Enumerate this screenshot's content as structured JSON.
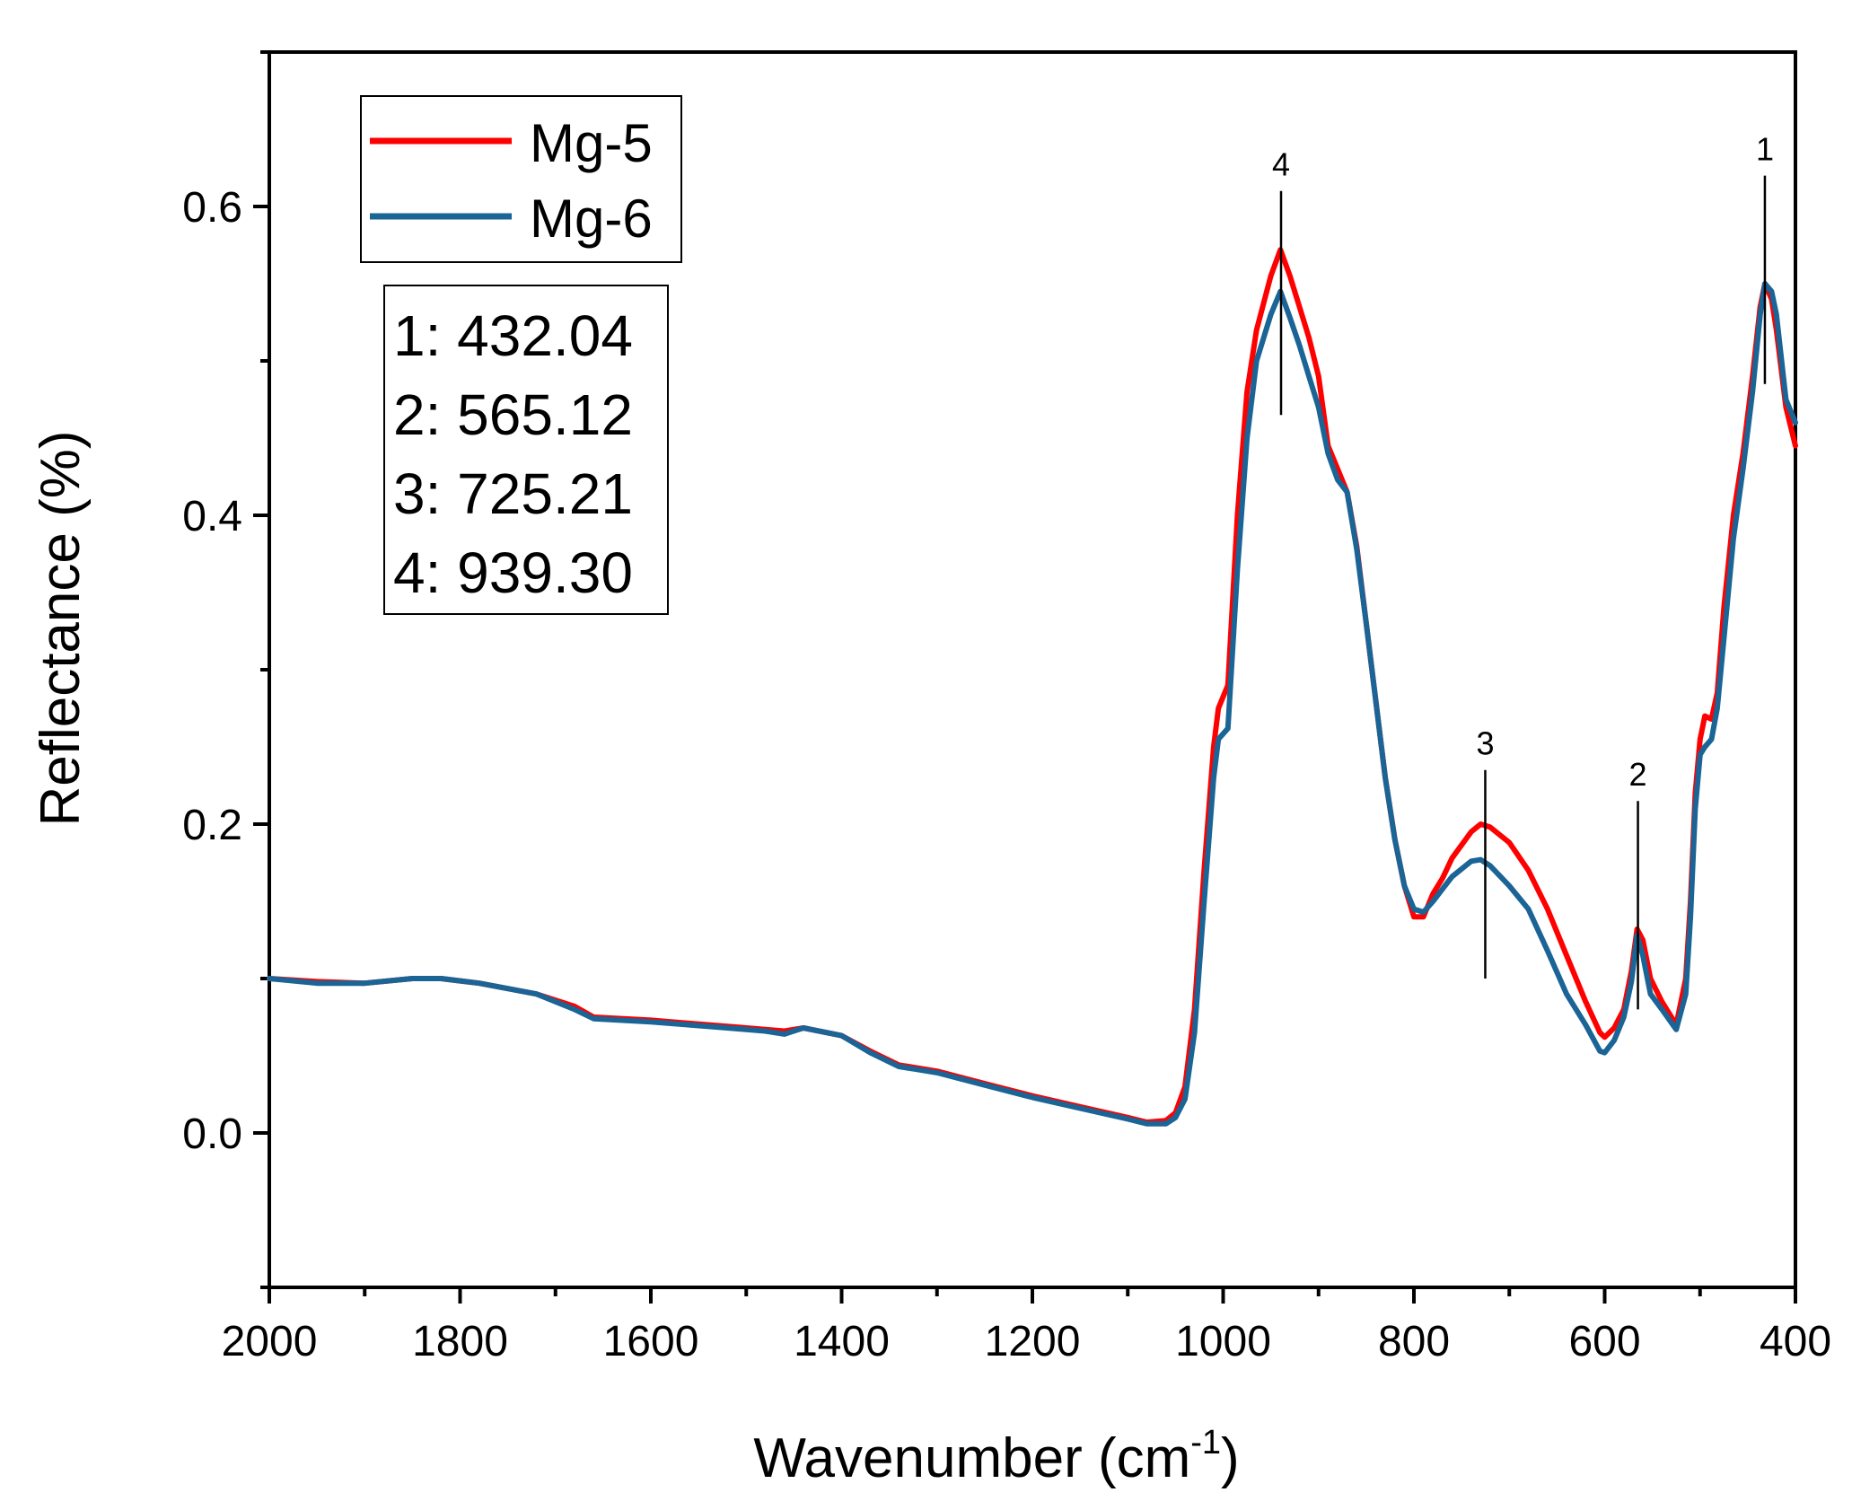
{
  "chart_data": {
    "type": "line",
    "title": "",
    "xlabel": "Wavenumber (cm",
    "xlabel_sup": "-1",
    "xlabel_close": ")",
    "ylabel": "Reflectance (%)",
    "xlim": [
      2000,
      400
    ],
    "ylim": [
      -0.1,
      0.7
    ],
    "x_ticks": [
      2000,
      1800,
      1600,
      1400,
      1200,
      1000,
      800,
      600,
      400
    ],
    "x_tick_labels": [
      "2000",
      "1800",
      "1600",
      "1400",
      "1200",
      "1000",
      "800",
      "600",
      "400"
    ],
    "y_ticks": [
      0.0,
      0.2,
      0.4,
      0.6
    ],
    "y_tick_labels": [
      "0.0",
      "0.2",
      "0.4",
      "0.6"
    ],
    "grid": false,
    "legend_position": "top-left",
    "series": [
      {
        "name": "Mg-5",
        "color": "#ff0000",
        "points": [
          [
            2000,
            0.1
          ],
          [
            1950,
            0.098
          ],
          [
            1900,
            0.097
          ],
          [
            1850,
            0.1
          ],
          [
            1820,
            0.1
          ],
          [
            1780,
            0.097
          ],
          [
            1720,
            0.09
          ],
          [
            1680,
            0.082
          ],
          [
            1660,
            0.075
          ],
          [
            1600,
            0.073
          ],
          [
            1560,
            0.071
          ],
          [
            1520,
            0.069
          ],
          [
            1480,
            0.067
          ],
          [
            1460,
            0.066
          ],
          [
            1440,
            0.068
          ],
          [
            1400,
            0.063
          ],
          [
            1370,
            0.053
          ],
          [
            1340,
            0.044
          ],
          [
            1300,
            0.04
          ],
          [
            1250,
            0.032
          ],
          [
            1200,
            0.024
          ],
          [
            1150,
            0.017
          ],
          [
            1100,
            0.01
          ],
          [
            1080,
            0.007
          ],
          [
            1060,
            0.008
          ],
          [
            1050,
            0.013
          ],
          [
            1040,
            0.03
          ],
          [
            1030,
            0.08
          ],
          [
            1020,
            0.17
          ],
          [
            1010,
            0.25
          ],
          [
            1005,
            0.275
          ],
          [
            995,
            0.29
          ],
          [
            985,
            0.4
          ],
          [
            975,
            0.48
          ],
          [
            965,
            0.52
          ],
          [
            950,
            0.555
          ],
          [
            940,
            0.572
          ],
          [
            930,
            0.555
          ],
          [
            920,
            0.535
          ],
          [
            910,
            0.515
          ],
          [
            900,
            0.49
          ],
          [
            890,
            0.445
          ],
          [
            880,
            0.43
          ],
          [
            870,
            0.415
          ],
          [
            860,
            0.38
          ],
          [
            850,
            0.33
          ],
          [
            840,
            0.28
          ],
          [
            830,
            0.23
          ],
          [
            820,
            0.19
          ],
          [
            810,
            0.16
          ],
          [
            800,
            0.14
          ],
          [
            790,
            0.14
          ],
          [
            780,
            0.155
          ],
          [
            770,
            0.165
          ],
          [
            760,
            0.178
          ],
          [
            740,
            0.195
          ],
          [
            730,
            0.2
          ],
          [
            720,
            0.198
          ],
          [
            700,
            0.188
          ],
          [
            680,
            0.17
          ],
          [
            660,
            0.145
          ],
          [
            640,
            0.115
          ],
          [
            620,
            0.085
          ],
          [
            605,
            0.065
          ],
          [
            600,
            0.062
          ],
          [
            590,
            0.068
          ],
          [
            580,
            0.08
          ],
          [
            572,
            0.105
          ],
          [
            566,
            0.132
          ],
          [
            560,
            0.125
          ],
          [
            552,
            0.1
          ],
          [
            540,
            0.085
          ],
          [
            525,
            0.07
          ],
          [
            515,
            0.1
          ],
          [
            510,
            0.15
          ],
          [
            505,
            0.22
          ],
          [
            500,
            0.255
          ],
          [
            495,
            0.27
          ],
          [
            488,
            0.268
          ],
          [
            482,
            0.285
          ],
          [
            475,
            0.34
          ],
          [
            465,
            0.4
          ],
          [
            455,
            0.44
          ],
          [
            445,
            0.49
          ],
          [
            437,
            0.535
          ],
          [
            432,
            0.55
          ],
          [
            425,
            0.54
          ],
          [
            420,
            0.52
          ],
          [
            410,
            0.47
          ],
          [
            400,
            0.445
          ]
        ]
      },
      {
        "name": "Mg-6",
        "color": "#1a6496",
        "points": [
          [
            2000,
            0.1
          ],
          [
            1950,
            0.097
          ],
          [
            1900,
            0.097
          ],
          [
            1850,
            0.1
          ],
          [
            1820,
            0.1
          ],
          [
            1780,
            0.097
          ],
          [
            1720,
            0.09
          ],
          [
            1680,
            0.08
          ],
          [
            1660,
            0.074
          ],
          [
            1600,
            0.072
          ],
          [
            1560,
            0.07
          ],
          [
            1520,
            0.068
          ],
          [
            1480,
            0.066
          ],
          [
            1460,
            0.064
          ],
          [
            1440,
            0.068
          ],
          [
            1400,
            0.063
          ],
          [
            1370,
            0.052
          ],
          [
            1340,
            0.043
          ],
          [
            1300,
            0.039
          ],
          [
            1250,
            0.031
          ],
          [
            1200,
            0.023
          ],
          [
            1150,
            0.016
          ],
          [
            1100,
            0.009
          ],
          [
            1080,
            0.006
          ],
          [
            1060,
            0.006
          ],
          [
            1050,
            0.01
          ],
          [
            1040,
            0.022
          ],
          [
            1030,
            0.065
          ],
          [
            1020,
            0.15
          ],
          [
            1010,
            0.23
          ],
          [
            1005,
            0.255
          ],
          [
            995,
            0.262
          ],
          [
            985,
            0.365
          ],
          [
            975,
            0.45
          ],
          [
            965,
            0.5
          ],
          [
            950,
            0.53
          ],
          [
            940,
            0.545
          ],
          [
            930,
            0.528
          ],
          [
            920,
            0.51
          ],
          [
            910,
            0.49
          ],
          [
            900,
            0.47
          ],
          [
            890,
            0.44
          ],
          [
            880,
            0.423
          ],
          [
            870,
            0.415
          ],
          [
            860,
            0.378
          ],
          [
            850,
            0.33
          ],
          [
            840,
            0.28
          ],
          [
            830,
            0.23
          ],
          [
            820,
            0.19
          ],
          [
            810,
            0.16
          ],
          [
            800,
            0.145
          ],
          [
            790,
            0.143
          ],
          [
            780,
            0.15
          ],
          [
            770,
            0.158
          ],
          [
            760,
            0.166
          ],
          [
            740,
            0.176
          ],
          [
            730,
            0.177
          ],
          [
            720,
            0.173
          ],
          [
            700,
            0.16
          ],
          [
            680,
            0.145
          ],
          [
            660,
            0.118
          ],
          [
            640,
            0.09
          ],
          [
            620,
            0.07
          ],
          [
            605,
            0.053
          ],
          [
            600,
            0.052
          ],
          [
            590,
            0.06
          ],
          [
            580,
            0.075
          ],
          [
            572,
            0.098
          ],
          [
            566,
            0.128
          ],
          [
            560,
            0.115
          ],
          [
            552,
            0.09
          ],
          [
            540,
            0.08
          ],
          [
            525,
            0.067
          ],
          [
            515,
            0.09
          ],
          [
            510,
            0.14
          ],
          [
            505,
            0.21
          ],
          [
            500,
            0.245
          ],
          [
            495,
            0.25
          ],
          [
            488,
            0.255
          ],
          [
            482,
            0.275
          ],
          [
            475,
            0.32
          ],
          [
            465,
            0.385
          ],
          [
            455,
            0.43
          ],
          [
            445,
            0.48
          ],
          [
            437,
            0.53
          ],
          [
            432,
            0.55
          ],
          [
            425,
            0.545
          ],
          [
            420,
            0.53
          ],
          [
            410,
            0.475
          ],
          [
            400,
            0.46
          ]
        ]
      }
    ],
    "peaks": [
      {
        "label": "1",
        "x": 432.04,
        "y_top": 0.62,
        "y_bottom": 0.485,
        "label_y": 0.63
      },
      {
        "label": "2",
        "x": 565.12,
        "y_top": 0.215,
        "y_bottom": 0.08,
        "label_y": 0.225
      },
      {
        "label": "3",
        "x": 725.21,
        "y_top": 0.235,
        "y_bottom": 0.1,
        "label_y": 0.245
      },
      {
        "label": "4",
        "x": 939.3,
        "y_top": 0.61,
        "y_bottom": 0.465,
        "label_y": 0.62
      }
    ],
    "peak_list": [
      "1: 432.04",
      "2: 565.12",
      "3: 725.21",
      "4: 939.30"
    ]
  }
}
